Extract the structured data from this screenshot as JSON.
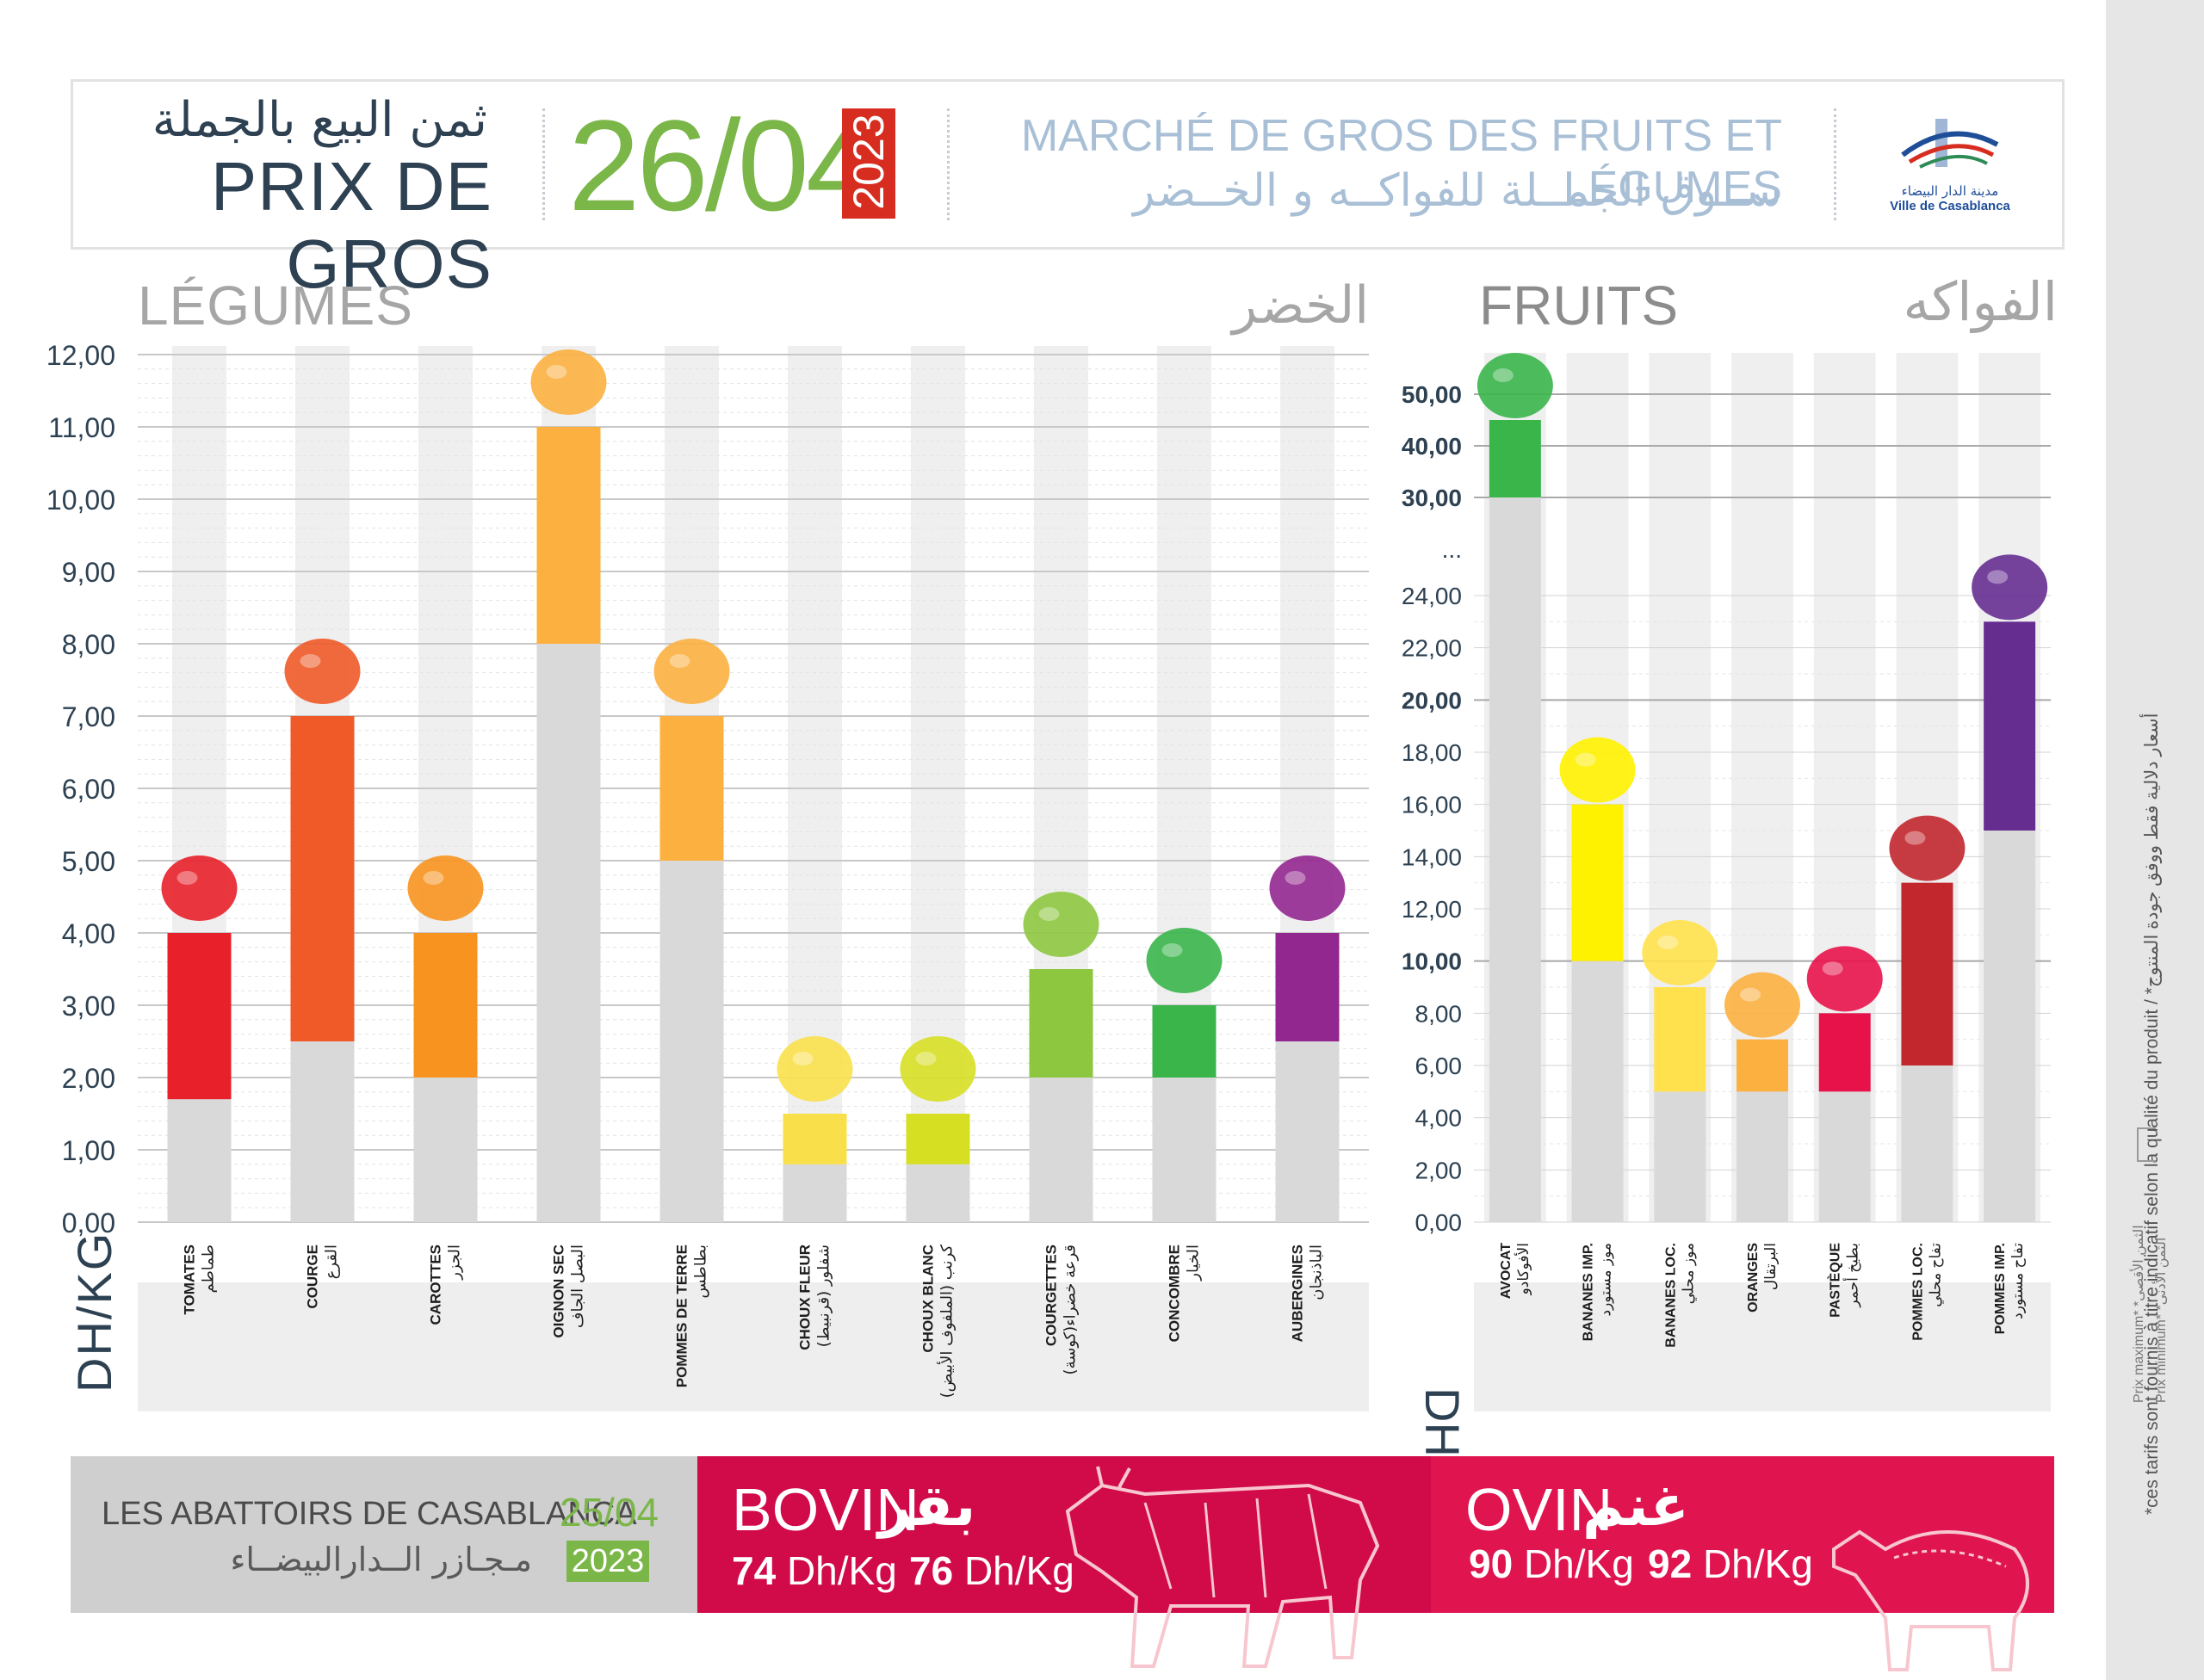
{
  "header": {
    "title_ar": "ثمن البيع بالجملة",
    "title_fr": "PRIX DE GROS",
    "date": "26/04",
    "year": "2023",
    "market_fr": "MARCHÉ DE GROS DES FRUITS ET LÉGUMES",
    "market_ar": "ســوق الجمــلة للفواكــه و الخــضر",
    "logo_ar": "مدينة الدار البيضاء",
    "logo_fr": "Ville de Casablanca"
  },
  "side_note": {
    "disclaimer": "*ces tarifs sont fournis à titre indicatif selon la qualité du produit / *أسعار دلالية فقط ووفق جودة المنتوج",
    "legend_max": "Prix maximum* *الثمن الأقصى",
    "legend_min": "Prix minimum* *الثمن الأدنى"
  },
  "colors": {
    "min_bar": "#d9d9d9",
    "column_band": "#efefef",
    "accent_green": "#7ab648",
    "date_red": "#d62d20"
  },
  "legumes": {
    "title_fr": "LÉGUMES",
    "title_ar": "الخضر",
    "unit": "DH/KG"
  },
  "fruits": {
    "title_fr": "FRUITS",
    "title_ar": "الفواكه",
    "unit": "DH/KG"
  },
  "chart_data": [
    {
      "type": "bar",
      "title": "LÉGUMES",
      "ylabel": "DH/KG",
      "ylim": [
        0,
        12
      ],
      "yticks": [
        "0,00",
        "1,00",
        "2,00",
        "3,00",
        "4,00",
        "5,00",
        "6,00",
        "7,00",
        "8,00",
        "9,00",
        "10,00",
        "11,00",
        "12,00"
      ],
      "categories": [
        {
          "fr": "TOMATES",
          "ar": "طماطم",
          "min": 1.7,
          "max": 4.0,
          "color": "#e8202a",
          "icon": "tomato-icon"
        },
        {
          "fr": "COURGE",
          "ar": "القرع",
          "min": 2.5,
          "max": 7.0,
          "color": "#f05a28",
          "icon": "pumpkin-icon"
        },
        {
          "fr": "CAROTTES",
          "ar": "الجزر",
          "min": 2.0,
          "max": 4.0,
          "color": "#f7931e",
          "icon": "carrot-icon"
        },
        {
          "fr": "OIGNON SEC",
          "ar": "البصل الجاف",
          "min": 8.0,
          "max": 11.0,
          "color": "#fbb040",
          "icon": "onion-icon"
        },
        {
          "fr": "POMMES DE TERRE",
          "ar": "بطاطس",
          "min": 5.0,
          "max": 7.0,
          "color": "#fbb040",
          "icon": "potato-icon"
        },
        {
          "fr": "CHOUX FLEUR",
          "ar": "شفلور (قرنبيط)",
          "min": 0.8,
          "max": 1.5,
          "color": "#f9e04b",
          "icon": "cauliflower-icon"
        },
        {
          "fr": "CHOUX BLANC",
          "ar": "كرنب (الملفوف الأبيض)",
          "min": 0.8,
          "max": 1.5,
          "color": "#d7df23",
          "icon": "cabbage-icon"
        },
        {
          "fr": "COURGETTES",
          "ar": "قرعة خضراء(كوسة)",
          "min": 2.0,
          "max": 3.5,
          "color": "#8dc63f",
          "icon": "zucchini-icon"
        },
        {
          "fr": "CONCOMBRE",
          "ar": "الخيار",
          "min": 2.0,
          "max": 3.0,
          "color": "#39b54a",
          "icon": "cucumber-icon"
        },
        {
          "fr": "AUBERGINES",
          "ar": "الباذنجان",
          "min": 2.5,
          "max": 4.0,
          "color": "#92278f",
          "icon": "eggplant-icon"
        }
      ]
    },
    {
      "type": "bar",
      "title": "FRUITS",
      "ylabel": "DH/KG",
      "scale": "broken axis: 0–25 linear, then 30/40/50",
      "yticks": [
        "0,00",
        "2,00",
        "4,00",
        "6,00",
        "8,00",
        "10,00",
        "12,00",
        "14,00",
        "16,00",
        "18,00",
        "20,00",
        "22,00",
        "24,00",
        "...",
        "30,00",
        "40,00",
        "50,00"
      ],
      "categories": [
        {
          "fr": "AVOCAT",
          "ar": "الأفوكادو",
          "min": 30.0,
          "max": 45.0,
          "color": "#39b54a",
          "icon": "avocado-icon"
        },
        {
          "fr": "BANANES IMP.",
          "ar": "موز مستورد",
          "min": 10.0,
          "max": 16.0,
          "color": "#fff200",
          "icon": "bananas-icon"
        },
        {
          "fr": "BANANES LOC.",
          "ar": "موز محلي",
          "min": 5.0,
          "max": 9.0,
          "color": "#ffe14d",
          "icon": "banana-icon"
        },
        {
          "fr": "ORANGES",
          "ar": "البرتقال",
          "min": 5.0,
          "max": 7.0,
          "color": "#fbb040",
          "icon": "orange-icon"
        },
        {
          "fr": "PASTÈQUE",
          "ar": "بطيخ أحمر",
          "min": 5.0,
          "max": 8.0,
          "color": "#e8124a",
          "icon": "watermelon-icon"
        },
        {
          "fr": "POMMES LOC.",
          "ar": "تفاح محلي",
          "min": 6.0,
          "max": 13.0,
          "color": "#c1272d",
          "icon": "apple-icon"
        },
        {
          "fr": "POMMES IMP.",
          "ar": "تفاح مستورد",
          "min": 15.0,
          "max": 23.0,
          "color": "#662d91",
          "icon": "apples-icon"
        }
      ]
    }
  ],
  "meat": {
    "abattoirs_fr": "LES ABATTOIRS DE CASABLANCA",
    "abattoirs_ar": "مـجـازر الــدارالبيضــاء",
    "date": "25/04",
    "year": "2023",
    "bovin": {
      "fr": "BOVIN",
      "ar": "بقر",
      "min": "74",
      "max": "76",
      "unit": "Dh/Kg"
    },
    "ovin": {
      "fr": "OVIN",
      "ar": "غنم",
      "min": "90",
      "max": "92",
      "unit": "Dh/Kg"
    }
  }
}
